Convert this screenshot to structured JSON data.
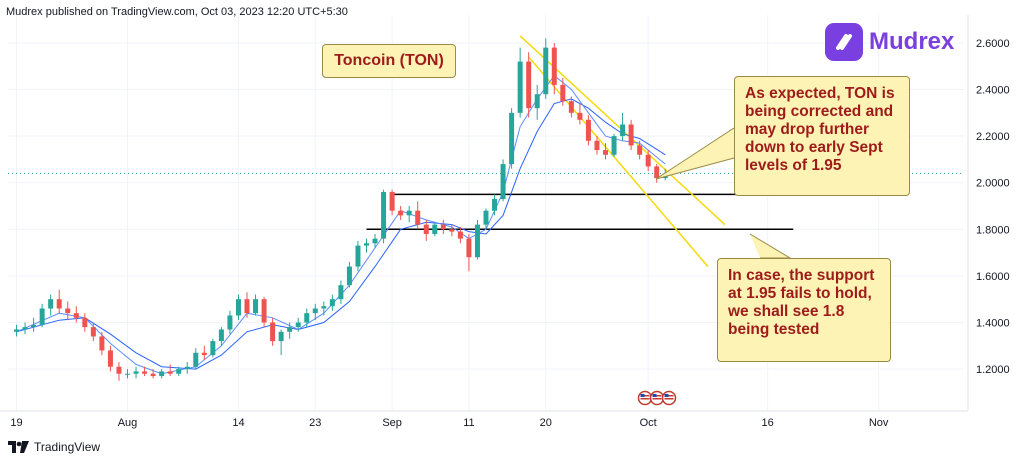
{
  "attribution": "Mudrex published on TradingView.com, Oct 03, 2023 12:20 UTC+5:30",
  "logo": {
    "text": "Mudrex",
    "color": "#7a3fe0"
  },
  "footer": {
    "text": "TradingView"
  },
  "colors": {
    "up": "#26a69a",
    "down": "#ef5350",
    "ma": "#2962ff",
    "channel": "#f5d90a",
    "level": "#000000"
  },
  "chart_data": {
    "type": "candlestick",
    "title": "Toncoin (TON)",
    "y_ticks": [
      "2.6000",
      "2.4000",
      "2.2000",
      "2.0000",
      "1.8000",
      "1.6000",
      "1.4000",
      "1.2000"
    ],
    "y_tick_values": [
      2.6,
      2.4,
      2.2,
      2.0,
      1.8,
      1.6,
      1.4,
      1.2
    ],
    "ylim": [
      1.02,
      2.72
    ],
    "x_ticks": [
      "19",
      "Aug",
      "14",
      "23",
      "Sep",
      "11",
      "20",
      "Oct",
      "16",
      "Nov"
    ],
    "x_tick_days": [
      1,
      14,
      27,
      36,
      45,
      54,
      63,
      75,
      89,
      102
    ],
    "candles": [
      {
        "d": 1,
        "o": 1.36,
        "h": 1.39,
        "l": 1.34,
        "c": 1.37
      },
      {
        "d": 2,
        "o": 1.37,
        "h": 1.4,
        "l": 1.35,
        "c": 1.38
      },
      {
        "d": 3,
        "o": 1.38,
        "h": 1.42,
        "l": 1.36,
        "c": 1.39
      },
      {
        "d": 4,
        "o": 1.39,
        "h": 1.48,
        "l": 1.38,
        "c": 1.46
      },
      {
        "d": 5,
        "o": 1.46,
        "h": 1.52,
        "l": 1.43,
        "c": 1.5
      },
      {
        "d": 6,
        "o": 1.5,
        "h": 1.54,
        "l": 1.44,
        "c": 1.46
      },
      {
        "d": 7,
        "o": 1.46,
        "h": 1.49,
        "l": 1.41,
        "c": 1.44
      },
      {
        "d": 8,
        "o": 1.44,
        "h": 1.47,
        "l": 1.4,
        "c": 1.42
      },
      {
        "d": 9,
        "o": 1.42,
        "h": 1.44,
        "l": 1.36,
        "c": 1.38
      },
      {
        "d": 10,
        "o": 1.38,
        "h": 1.4,
        "l": 1.32,
        "c": 1.34
      },
      {
        "d": 11,
        "o": 1.34,
        "h": 1.36,
        "l": 1.26,
        "c": 1.28
      },
      {
        "d": 12,
        "o": 1.28,
        "h": 1.3,
        "l": 1.19,
        "c": 1.21
      },
      {
        "d": 13,
        "o": 1.21,
        "h": 1.23,
        "l": 1.15,
        "c": 1.18
      },
      {
        "d": 14,
        "o": 1.18,
        "h": 1.2,
        "l": 1.16,
        "c": 1.18
      },
      {
        "d": 15,
        "o": 1.18,
        "h": 1.21,
        "l": 1.16,
        "c": 1.19
      },
      {
        "d": 16,
        "o": 1.19,
        "h": 1.21,
        "l": 1.17,
        "c": 1.18
      },
      {
        "d": 17,
        "o": 1.18,
        "h": 1.2,
        "l": 1.16,
        "c": 1.17
      },
      {
        "d": 18,
        "o": 1.17,
        "h": 1.2,
        "l": 1.16,
        "c": 1.19
      },
      {
        "d": 19,
        "o": 1.19,
        "h": 1.22,
        "l": 1.17,
        "c": 1.18
      },
      {
        "d": 20,
        "o": 1.18,
        "h": 1.21,
        "l": 1.17,
        "c": 1.2
      },
      {
        "d": 21,
        "o": 1.2,
        "h": 1.23,
        "l": 1.18,
        "c": 1.21
      },
      {
        "d": 22,
        "o": 1.21,
        "h": 1.29,
        "l": 1.2,
        "c": 1.27
      },
      {
        "d": 23,
        "o": 1.27,
        "h": 1.3,
        "l": 1.24,
        "c": 1.26
      },
      {
        "d": 24,
        "o": 1.26,
        "h": 1.33,
        "l": 1.25,
        "c": 1.32
      },
      {
        "d": 25,
        "o": 1.32,
        "h": 1.38,
        "l": 1.3,
        "c": 1.37
      },
      {
        "d": 26,
        "o": 1.37,
        "h": 1.45,
        "l": 1.35,
        "c": 1.43
      },
      {
        "d": 27,
        "o": 1.43,
        "h": 1.52,
        "l": 1.41,
        "c": 1.5
      },
      {
        "d": 28,
        "o": 1.5,
        "h": 1.53,
        "l": 1.42,
        "c": 1.44
      },
      {
        "d": 29,
        "o": 1.44,
        "h": 1.52,
        "l": 1.43,
        "c": 1.5
      },
      {
        "d": 30,
        "o": 1.5,
        "h": 1.51,
        "l": 1.38,
        "c": 1.4
      },
      {
        "d": 31,
        "o": 1.4,
        "h": 1.42,
        "l": 1.3,
        "c": 1.32
      },
      {
        "d": 32,
        "o": 1.32,
        "h": 1.37,
        "l": 1.26,
        "c": 1.36
      },
      {
        "d": 33,
        "o": 1.36,
        "h": 1.4,
        "l": 1.33,
        "c": 1.38
      },
      {
        "d": 34,
        "o": 1.38,
        "h": 1.42,
        "l": 1.36,
        "c": 1.4
      },
      {
        "d": 35,
        "o": 1.4,
        "h": 1.46,
        "l": 1.38,
        "c": 1.44
      },
      {
        "d": 36,
        "o": 1.44,
        "h": 1.48,
        "l": 1.41,
        "c": 1.46
      },
      {
        "d": 37,
        "o": 1.46,
        "h": 1.49,
        "l": 1.43,
        "c": 1.47
      },
      {
        "d": 38,
        "o": 1.47,
        "h": 1.52,
        "l": 1.45,
        "c": 1.5
      },
      {
        "d": 39,
        "o": 1.5,
        "h": 1.58,
        "l": 1.48,
        "c": 1.56
      },
      {
        "d": 40,
        "o": 1.56,
        "h": 1.66,
        "l": 1.55,
        "c": 1.64
      },
      {
        "d": 41,
        "o": 1.64,
        "h": 1.75,
        "l": 1.62,
        "c": 1.73
      },
      {
        "d": 42,
        "o": 1.73,
        "h": 1.76,
        "l": 1.7,
        "c": 1.74
      },
      {
        "d": 43,
        "o": 1.74,
        "h": 1.78,
        "l": 1.72,
        "c": 1.76
      },
      {
        "d": 44,
        "o": 1.76,
        "h": 1.97,
        "l": 1.74,
        "c": 1.96
      },
      {
        "d": 45,
        "o": 1.96,
        "h": 1.97,
        "l": 1.86,
        "c": 1.88
      },
      {
        "d": 46,
        "o": 1.88,
        "h": 1.9,
        "l": 1.84,
        "c": 1.86
      },
      {
        "d": 47,
        "o": 1.86,
        "h": 1.9,
        "l": 1.83,
        "c": 1.88
      },
      {
        "d": 48,
        "o": 1.88,
        "h": 1.92,
        "l": 1.8,
        "c": 1.82
      },
      {
        "d": 49,
        "o": 1.82,
        "h": 1.84,
        "l": 1.75,
        "c": 1.78
      },
      {
        "d": 50,
        "o": 1.78,
        "h": 1.83,
        "l": 1.77,
        "c": 1.82
      },
      {
        "d": 51,
        "o": 1.82,
        "h": 1.84,
        "l": 1.78,
        "c": 1.8
      },
      {
        "d": 52,
        "o": 1.8,
        "h": 1.82,
        "l": 1.77,
        "c": 1.79
      },
      {
        "d": 53,
        "o": 1.79,
        "h": 1.81,
        "l": 1.74,
        "c": 1.76
      },
      {
        "d": 54,
        "o": 1.76,
        "h": 1.78,
        "l": 1.62,
        "c": 1.68
      },
      {
        "d": 55,
        "o": 1.68,
        "h": 1.84,
        "l": 1.67,
        "c": 1.82
      },
      {
        "d": 56,
        "o": 1.82,
        "h": 1.89,
        "l": 1.8,
        "c": 1.88
      },
      {
        "d": 57,
        "o": 1.88,
        "h": 1.95,
        "l": 1.86,
        "c": 1.93
      },
      {
        "d": 58,
        "o": 1.93,
        "h": 2.1,
        "l": 1.92,
        "c": 2.08
      },
      {
        "d": 59,
        "o": 2.08,
        "h": 2.32,
        "l": 2.06,
        "c": 2.3
      },
      {
        "d": 60,
        "o": 2.3,
        "h": 2.58,
        "l": 2.28,
        "c": 2.52
      },
      {
        "d": 61,
        "o": 2.52,
        "h": 2.56,
        "l": 2.28,
        "c": 2.32
      },
      {
        "d": 62,
        "o": 2.32,
        "h": 2.42,
        "l": 2.27,
        "c": 2.38
      },
      {
        "d": 63,
        "o": 2.38,
        "h": 2.62,
        "l": 2.36,
        "c": 2.58
      },
      {
        "d": 64,
        "o": 2.58,
        "h": 2.6,
        "l": 2.38,
        "c": 2.42
      },
      {
        "d": 65,
        "o": 2.42,
        "h": 2.45,
        "l": 2.33,
        "c": 2.35
      },
      {
        "d": 66,
        "o": 2.35,
        "h": 2.37,
        "l": 2.28,
        "c": 2.3
      },
      {
        "d": 67,
        "o": 2.3,
        "h": 2.34,
        "l": 2.25,
        "c": 2.27
      },
      {
        "d": 68,
        "o": 2.27,
        "h": 2.29,
        "l": 2.16,
        "c": 2.18
      },
      {
        "d": 69,
        "o": 2.18,
        "h": 2.2,
        "l": 2.12,
        "c": 2.14
      },
      {
        "d": 70,
        "o": 2.14,
        "h": 2.17,
        "l": 2.1,
        "c": 2.12
      },
      {
        "d": 71,
        "o": 2.12,
        "h": 2.21,
        "l": 2.11,
        "c": 2.2
      },
      {
        "d": 72,
        "o": 2.2,
        "h": 2.3,
        "l": 2.18,
        "c": 2.25
      },
      {
        "d": 73,
        "o": 2.25,
        "h": 2.27,
        "l": 2.14,
        "c": 2.16
      },
      {
        "d": 74,
        "o": 2.16,
        "h": 2.18,
        "l": 2.1,
        "c": 2.12
      },
      {
        "d": 75,
        "o": 2.12,
        "h": 2.14,
        "l": 2.05,
        "c": 2.07
      },
      {
        "d": 76,
        "o": 2.07,
        "h": 2.08,
        "l": 2.0,
        "c": 2.02
      },
      {
        "d": 77,
        "o": 2.02,
        "h": 2.06,
        "l": 2.01,
        "c": 2.04
      }
    ],
    "ma_fast": [
      [
        1,
        1.36
      ],
      [
        6,
        1.44
      ],
      [
        9,
        1.42
      ],
      [
        12,
        1.31
      ],
      [
        15,
        1.22
      ],
      [
        18,
        1.18
      ],
      [
        22,
        1.21
      ],
      [
        25,
        1.3
      ],
      [
        28,
        1.44
      ],
      [
        31,
        1.42
      ],
      [
        34,
        1.37
      ],
      [
        37,
        1.44
      ],
      [
        40,
        1.56
      ],
      [
        43,
        1.72
      ],
      [
        46,
        1.88
      ],
      [
        49,
        1.84
      ],
      [
        52,
        1.81
      ],
      [
        54,
        1.76
      ],
      [
        56,
        1.8
      ],
      [
        58,
        1.96
      ],
      [
        60,
        2.24
      ],
      [
        62,
        2.36
      ],
      [
        64,
        2.46
      ],
      [
        66,
        2.4
      ],
      [
        68,
        2.3
      ],
      [
        70,
        2.2
      ],
      [
        72,
        2.18
      ],
      [
        74,
        2.17
      ],
      [
        77,
        2.08
      ]
    ],
    "ma_slow": [
      [
        1,
        1.36
      ],
      [
        6,
        1.41
      ],
      [
        9,
        1.42
      ],
      [
        12,
        1.35
      ],
      [
        15,
        1.27
      ],
      [
        18,
        1.21
      ],
      [
        22,
        1.2
      ],
      [
        25,
        1.26
      ],
      [
        28,
        1.36
      ],
      [
        31,
        1.39
      ],
      [
        34,
        1.37
      ],
      [
        37,
        1.4
      ],
      [
        40,
        1.49
      ],
      [
        43,
        1.64
      ],
      [
        46,
        1.8
      ],
      [
        49,
        1.83
      ],
      [
        52,
        1.82
      ],
      [
        54,
        1.79
      ],
      [
        56,
        1.78
      ],
      [
        58,
        1.86
      ],
      [
        60,
        2.06
      ],
      [
        62,
        2.22
      ],
      [
        64,
        2.34
      ],
      [
        66,
        2.36
      ],
      [
        68,
        2.32
      ],
      [
        70,
        2.26
      ],
      [
        72,
        2.21
      ],
      [
        74,
        2.19
      ],
      [
        77,
        2.12
      ]
    ],
    "levels": [
      {
        "value": 1.95,
        "from_day": 45,
        "to_day": 89
      },
      {
        "value": 1.8,
        "from_day": 42,
        "to_day": 92
      }
    ],
    "channel": [
      [
        [
          60,
          2.63
        ],
        [
          84,
          1.82
        ]
      ],
      [
        [
          61,
          2.54
        ],
        [
          82,
          1.64
        ]
      ]
    ],
    "current_price": 2.04,
    "annotations": [
      "As expected, TON is being corrected and may drop further down to early Sept levels of 1.95",
      "In case, the support at 1.95 fails to hold, we shall see 1.8 being tested"
    ]
  }
}
